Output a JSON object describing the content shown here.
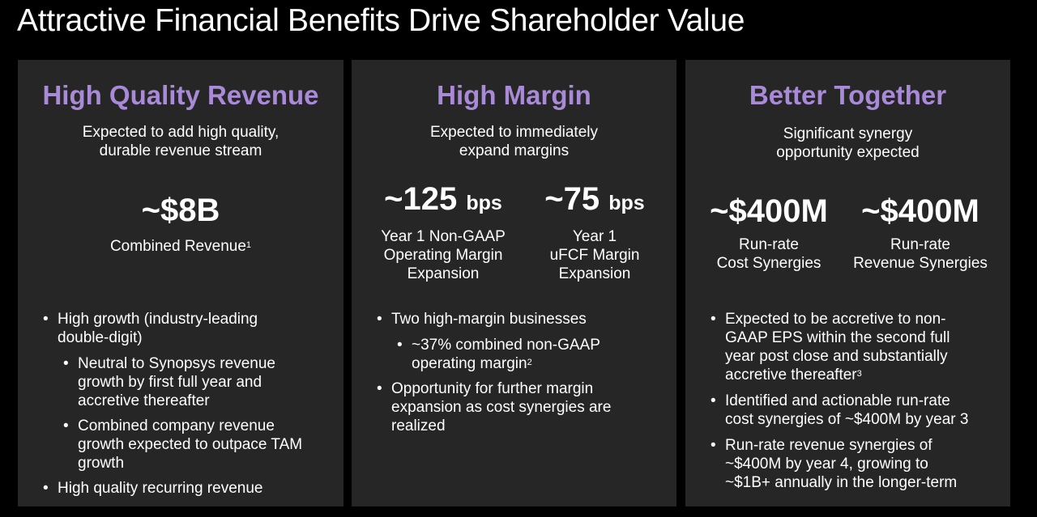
{
  "title": "Attractive Financial Benefits Drive Shareholder Value",
  "panels": [
    {
      "title": "High Quality Revenue",
      "subtitle": [
        "Expected to add high quality,",
        "durable revenue stream"
      ],
      "metrics": [
        {
          "value": "~$8B",
          "label": "Combined Revenue",
          "footnote": "1"
        }
      ],
      "bullets": [
        {
          "lines": [
            "High growth (industry-leading",
            "double-digit)"
          ]
        },
        {
          "lines": [
            "Neutral to Synopsys revenue",
            "growth by first full year and",
            "accretive thereafter"
          ]
        },
        {
          "lines": [
            "Combined company revenue",
            "growth expected to outpace TAM",
            "growth"
          ]
        },
        {
          "lines": [
            "High quality recurring revenue"
          ]
        }
      ]
    },
    {
      "title": "High Margin",
      "subtitle": [
        "Expected to immediately",
        "expand margins"
      ],
      "metrics": [
        {
          "value": "~125",
          "unit": "bps",
          "label_lines": [
            "Year 1 Non-GAAP",
            "Operating Margin",
            "Expansion"
          ]
        },
        {
          "value": "~75",
          "unit": "bps",
          "label_lines": [
            "Year 1",
            "uFCF Margin",
            "Expansion"
          ]
        }
      ],
      "bullets": [
        {
          "lines": [
            "Two high-margin businesses"
          ]
        },
        {
          "lines": [
            "~37% combined non-GAAP",
            "operating margin"
          ],
          "footnote": "2"
        },
        {
          "lines": [
            "Opportunity for further margin",
            "expansion as cost synergies are",
            "realized"
          ]
        }
      ]
    },
    {
      "title": "Better Together",
      "subtitle": [
        "Significant synergy",
        "opportunity expected"
      ],
      "metrics": [
        {
          "value": "~$400M",
          "label_lines": [
            "Run-rate",
            "Cost Synergies"
          ]
        },
        {
          "value": "~$400M",
          "label_lines": [
            "Run-rate",
            "Revenue Synergies"
          ]
        }
      ],
      "bullets": [
        {
          "lines": [
            "Expected to be accretive to non-",
            "GAAP EPS within the second full",
            "year post close and substantially",
            "accretive thereafter"
          ],
          "footnote": "3"
        },
        {
          "lines": [
            "Identified and actionable run-rate",
            "cost synergies of ~$400M by year 3"
          ]
        },
        {
          "lines": [
            "Run-rate revenue synergies of",
            "~$400M by year 4, growing to",
            "~$1B+ annually in the longer-term"
          ]
        }
      ]
    }
  ]
}
